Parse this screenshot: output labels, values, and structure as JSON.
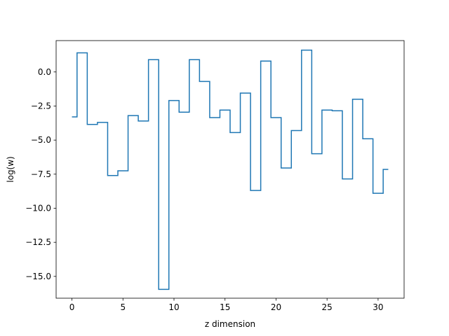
{
  "chart_data": {
    "type": "line",
    "step": "mid",
    "title": "",
    "xlabel": "z dimension",
    "ylabel": "log(w)",
    "xlim": [
      -1.55,
      32.55
    ],
    "ylim": [
      -16.6,
      2.3
    ],
    "xticks": [
      0,
      5,
      10,
      15,
      20,
      25,
      30
    ],
    "xtick_labels": [
      "0",
      "5",
      "10",
      "15",
      "20",
      "25",
      "30"
    ],
    "yticks": [
      0.0,
      -2.5,
      -5.0,
      -7.5,
      -10.0,
      -12.5,
      -15.0
    ],
    "ytick_labels": [
      "0.0",
      "−2.5",
      "−5.0",
      "−7.5",
      "−10.0",
      "−12.5",
      "−15.0"
    ],
    "grid": false,
    "legend": false,
    "line_color": "#1f77b4",
    "series": [
      {
        "x": [
          0,
          1,
          2,
          3,
          4,
          5,
          6,
          7,
          8,
          9,
          10,
          11,
          12,
          13,
          14,
          15,
          16,
          17,
          18,
          19,
          20,
          21,
          22,
          23,
          24,
          25,
          26,
          27,
          28,
          29,
          30,
          31
        ],
        "y": [
          -3.3,
          1.4,
          -3.85,
          -3.7,
          -7.6,
          -7.25,
          -3.2,
          -3.6,
          0.9,
          -15.95,
          -2.1,
          -2.95,
          0.9,
          -0.7,
          -3.35,
          -2.8,
          -4.45,
          -1.55,
          -8.7,
          0.8,
          -3.35,
          -7.05,
          -4.3,
          1.6,
          -6.0,
          -2.8,
          -2.85,
          -7.85,
          -2.0,
          -4.9,
          -8.9,
          -7.15
        ]
      }
    ]
  }
}
